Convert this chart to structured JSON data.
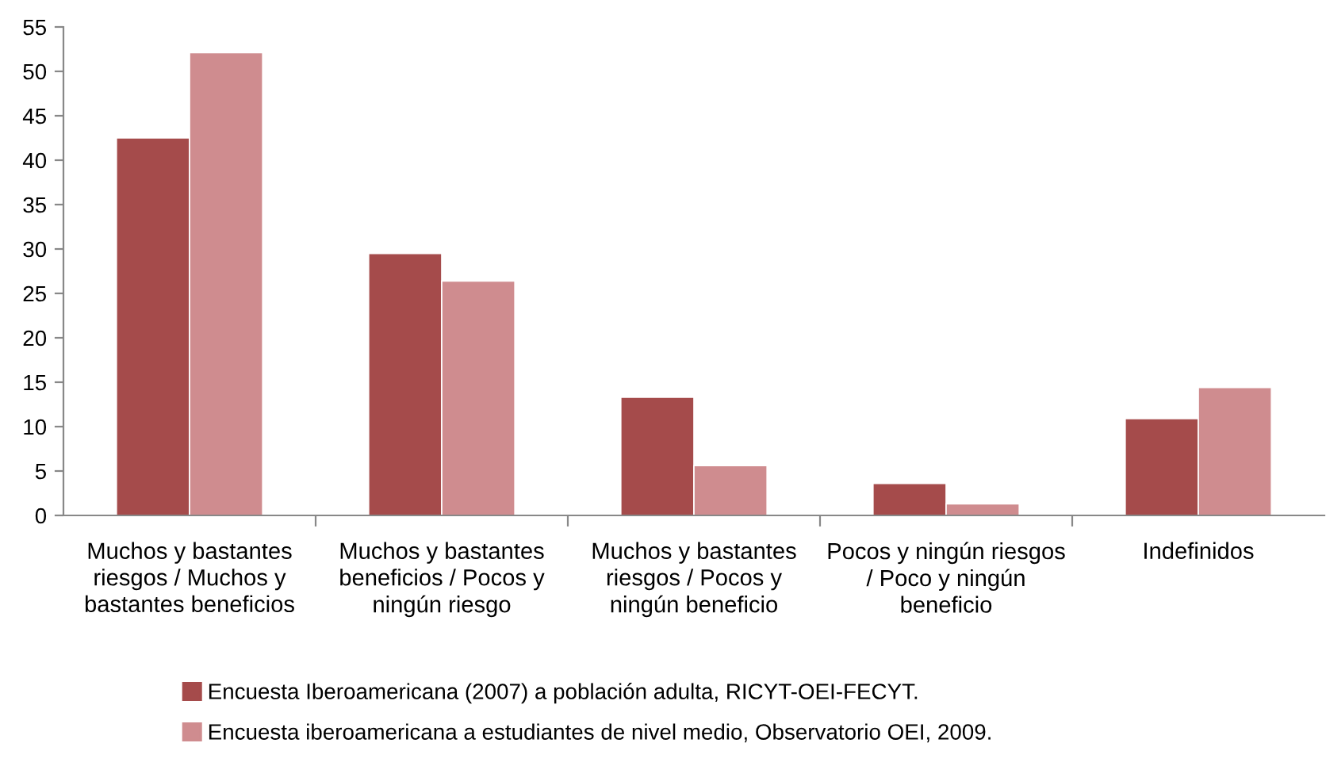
{
  "chart_data": {
    "type": "bar",
    "categories": [
      "Muchos y bastantes riesgos / Muchos y bastantes beneficios",
      "Muchos y bastantes beneficios / Pocos y ningún riesgo",
      "Muchos y bastantes riesgos / Pocos y ningún beneficio",
      "Pocos y ningún riesgos / Poco y ningún beneficio",
      "Indefinidos"
    ],
    "series": [
      {
        "name": "Encuesta Iberoamericana (2007) a población adulta, RICYT-OEI-FECYT.",
        "color": "#a54b4b",
        "values": [
          42.5,
          29.5,
          13.3,
          3.6,
          10.9
        ]
      },
      {
        "name": "Encuesta iberoamericana a estudiantes de nivel medio, Observatorio OEI, 2009.",
        "color": "#cf8c8f",
        "values": [
          52.1,
          26.4,
          5.6,
          1.3,
          14.4
        ]
      }
    ],
    "ylim": [
      0,
      55
    ],
    "yticks": [
      0,
      5,
      10,
      15,
      20,
      25,
      30,
      35,
      40,
      45,
      50,
      55
    ],
    "grid": false,
    "legend": "bottom"
  }
}
